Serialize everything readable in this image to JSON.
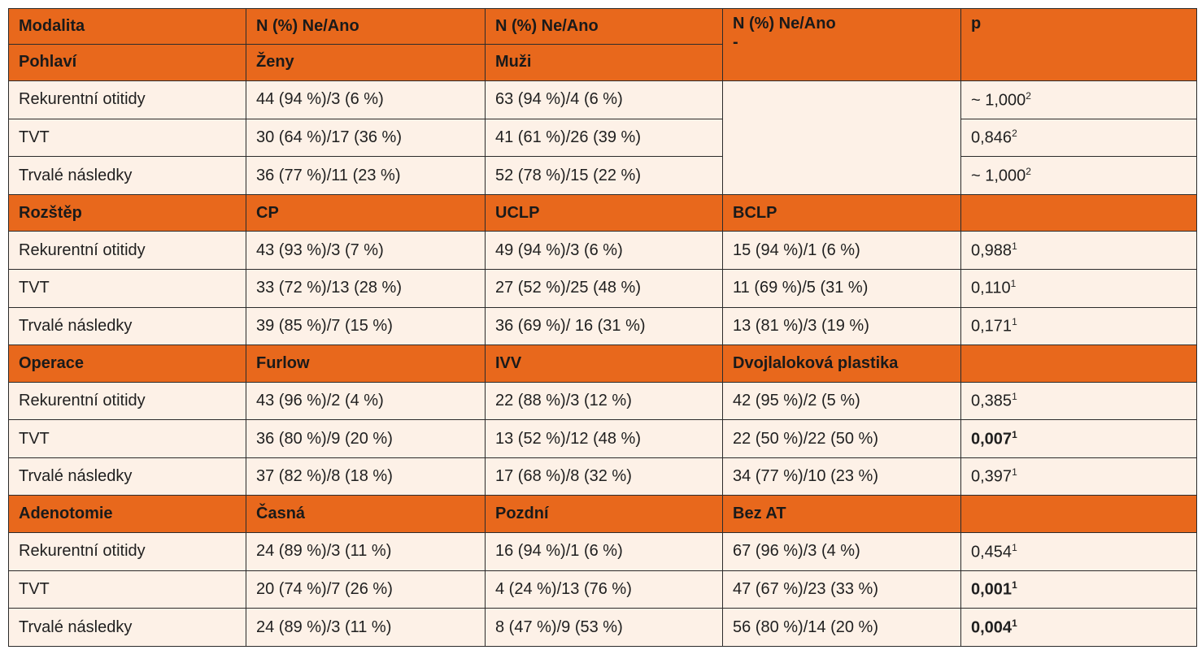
{
  "header": {
    "modality": "Modalita",
    "n1": "N (%) Ne/Ano",
    "n2": "N (%) Ne/Ano",
    "n3": "N (%) Ne/Ano",
    "n3_dash": "-",
    "p": "p"
  },
  "groups": [
    {
      "label": "Pohlaví",
      "c1": "Ženy",
      "c2": "Muži",
      "c3": "",
      "rows": [
        {
          "name": "Rekurentní otitidy",
          "v1": "44 (94 %)/3 (6 %)",
          "v2": "63 (94 %)/4 (6 %)",
          "v3": "",
          "p": "~ 1,000",
          "sup": "2",
          "bold": false
        },
        {
          "name": "TVT",
          "v1": "30 (64 %)/17 (36 %)",
          "v2": "41 (61 %)/26 (39 %)",
          "v3": "",
          "p": "0,846",
          "sup": "2",
          "bold": false
        },
        {
          "name": "Trvalé následky",
          "v1": "36 (77 %)/11 (23 %)",
          "v2": "52 (78 %)/15 (22 %)",
          "v3": "",
          "p": "~ 1,000",
          "sup": "2",
          "bold": false
        }
      ]
    },
    {
      "label": "Rozštěp",
      "c1": "CP",
      "c2": "UCLP",
      "c3": "BCLP",
      "rows": [
        {
          "name": "Rekurentní otitidy",
          "v1": "43 (93 %)/3 (7 %)",
          "v2": "49 (94 %)/3 (6 %)",
          "v3": "15 (94 %)/1 (6 %)",
          "p": "0,988",
          "sup": "1",
          "bold": false
        },
        {
          "name": "TVT",
          "v1": "33 (72 %)/13 (28 %)",
          "v2": "27 (52 %)/25 (48 %)",
          "v3": "11 (69 %)/5 (31 %)",
          "p": "0,110",
          "sup": "1",
          "bold": false
        },
        {
          "name": "Trvalé následky",
          "v1": "39 (85 %)/7 (15 %)",
          "v2": "36 (69 %)/ 16 (31 %)",
          "v3": "13 (81 %)/3 (19 %)",
          "p": "0,171",
          "sup": "1",
          "bold": false
        }
      ]
    },
    {
      "label": "Operace",
      "c1": "Furlow",
      "c2": "IVV",
      "c3": "Dvojlaloková plastika",
      "rows": [
        {
          "name": "Rekurentní otitidy",
          "v1": "43 (96 %)/2 (4 %)",
          "v2": "22 (88 %)/3 (12 %)",
          "v3": "42 (95 %)/2 (5 %)",
          "p": "0,385",
          "sup": "1",
          "bold": false
        },
        {
          "name": "TVT",
          "v1": "36 (80 %)/9 (20 %)",
          "v2": "13 (52 %)/12 (48 %)",
          "v3": "22 (50 %)/22 (50 %)",
          "p": "0,007",
          "sup": "1",
          "bold": true
        },
        {
          "name": "Trvalé následky",
          "v1": "37 (82 %)/8 (18 %)",
          "v2": "17 (68 %)/8 (32 %)",
          "v3": "34 (77 %)/10 (23 %)",
          "p": "0,397",
          "sup": "1",
          "bold": false
        }
      ]
    },
    {
      "label": "Adenotomie",
      "c1": "Časná",
      "c2": "Pozdní",
      "c3": "Bez AT",
      "rows": [
        {
          "name": "Rekurentní otitidy",
          "v1": "24 (89 %)/3 (11 %)",
          "v2": "16 (94 %)/1 (6 %)",
          "v3": "67 (96 %)/3 (4 %)",
          "p": "0,454",
          "sup": "1",
          "bold": false
        },
        {
          "name": "TVT",
          "v1": "20 (74 %)/7 (26 %)",
          "v2": "4 (24 %)/13 (76 %)",
          "v3": "47 (67 %)/23 (33 %)",
          "p": "0,001",
          "sup": "1",
          "bold": true
        },
        {
          "name": "Trvalé následky",
          "v1": "24 (89 %)/3 (11 %)",
          "v2": "8 (47 %)/9 (53 %)",
          "v3": "56 (80 %)/14 (20 %)",
          "p": "0,004",
          "sup": "1",
          "bold": true
        }
      ]
    }
  ]
}
